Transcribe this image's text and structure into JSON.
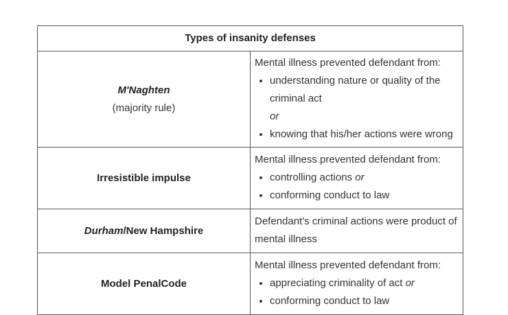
{
  "table": {
    "title": "Types of insanity defenses",
    "rows": [
      {
        "name": "M'Naghten",
        "note": "(majority rule)",
        "intro": "Mental illness prevented defendant from:",
        "bullet_1": "understanding nature or quality of the criminal act",
        "connector": "or",
        "bullet_2": "knowing that his/her actions were wrong"
      },
      {
        "name": "Irresistible impulse",
        "intro": "Mental illness prevented defendant from:",
        "bullet_1": "controlling actions",
        "bullet_1_conj": "or",
        "bullet_2": "conforming conduct to law"
      },
      {
        "name_italic": "Durham",
        "name_rest": "/New Hampshire",
        "description": "Defendant's criminal actions were product of mental illness"
      },
      {
        "name": "Model PenalCode",
        "intro": "Mental illness prevented defendant from:",
        "bullet_1": "appreciating criminality of act",
        "bullet_1_conj": "or",
        "bullet_2": "conforming conduct to law"
      }
    ]
  }
}
